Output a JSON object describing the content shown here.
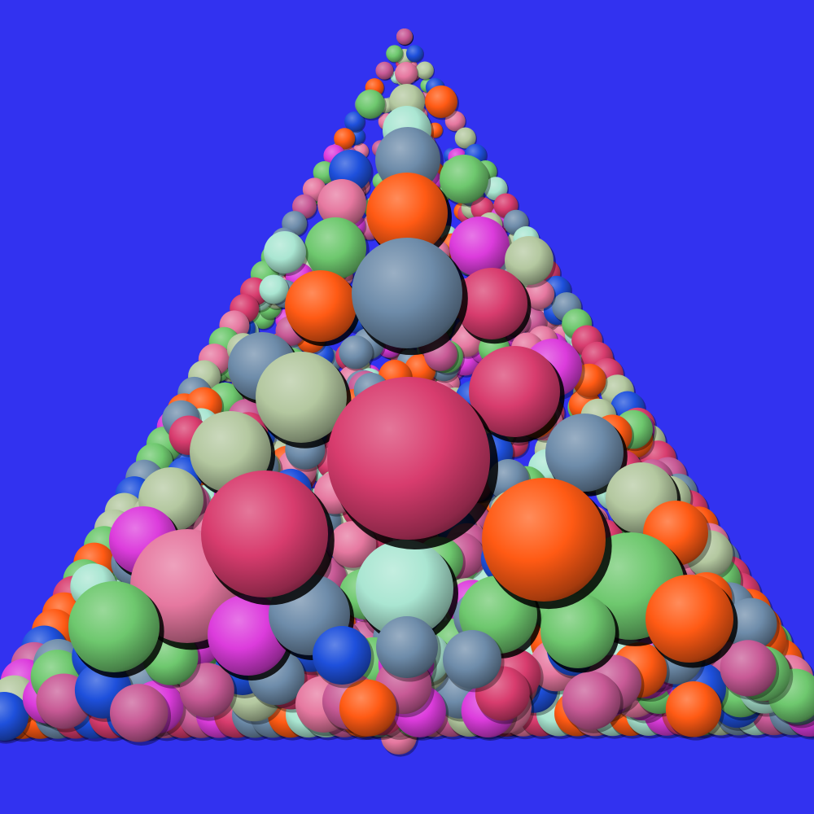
{
  "scene": {
    "subject": "sphere-packing-tetrahedron",
    "background_color": "#3232f0",
    "palette": {
      "rose": "#d83c6e",
      "orange": "#ff5a14",
      "slate": "#6e8caa",
      "sage": "#b4c8a0",
      "mint": "#aae6d2",
      "green": "#6ec86e",
      "magenta": "#dc3cdc",
      "pink": "#e678a0",
      "blue": "#1e50dc",
      "mauve": "#c85a96"
    }
  }
}
